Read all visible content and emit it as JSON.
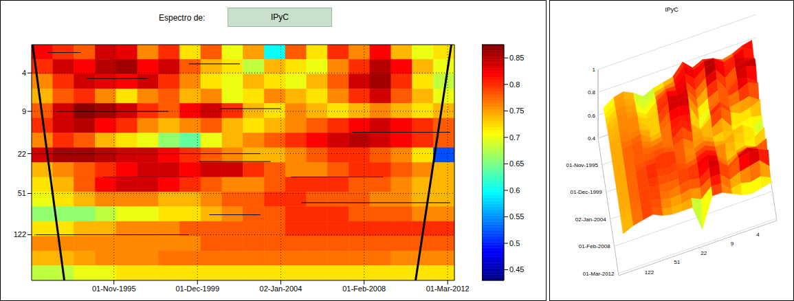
{
  "chart_data": [
    {
      "type": "heatmap",
      "title": "Espectro de:",
      "subtitle": "IPyC",
      "xlim": [
        1991.8,
        2012.5
      ],
      "xticks": [
        {
          "value": 1995.83,
          "label": "01-Nov-1995"
        },
        {
          "value": 1999.92,
          "label": "01-Dec-1999"
        },
        {
          "value": 2004.0,
          "label": "02-Jan-2004"
        },
        {
          "value": 2008.08,
          "label": "01-Feb-2008"
        },
        {
          "value": 2012.17,
          "label": "01-Mar-2012"
        }
      ],
      "ylim": [
        2.2,
        320
      ],
      "yticks": [
        4,
        9,
        22,
        51,
        122
      ],
      "log": "y",
      "grid": true,
      "color": "jet",
      "x_edges": [
        1991.8,
        1992.84,
        1993.87,
        1994.91,
        1995.94,
        1996.98,
        1998.01,
        1999.05,
        2000.08,
        2001.12,
        2002.15,
        2003.19,
        2004.22,
        2005.26,
        2006.29,
        2007.33,
        2008.36,
        2009.4,
        2010.43,
        2011.47,
        2012.5
      ],
      "y_edges": [
        2.2,
        3.0,
        4.1,
        5.6,
        7.6,
        10.4,
        14.2,
        19.4,
        26.5,
        36.2,
        49.4,
        67.4,
        92,
        126,
        172,
        234,
        320
      ],
      "cells": [
        [
          0.82,
          0.8,
          0.78,
          0.84,
          0.83,
          0.76,
          0.8,
          0.72,
          0.78,
          0.7,
          0.75,
          0.6,
          0.78,
          0.72,
          0.8,
          0.76,
          0.82,
          0.74,
          0.7,
          0.72
        ],
        [
          0.8,
          0.84,
          0.82,
          0.85,
          0.86,
          0.82,
          0.84,
          0.78,
          0.74,
          0.72,
          0.68,
          0.74,
          0.72,
          0.7,
          0.76,
          0.8,
          0.85,
          0.82,
          0.74,
          0.7
        ],
        [
          0.76,
          0.8,
          0.84,
          0.83,
          0.82,
          0.84,
          0.8,
          0.76,
          0.72,
          0.7,
          0.74,
          0.72,
          0.7,
          0.74,
          0.78,
          0.84,
          0.86,
          0.8,
          0.72,
          0.68
        ],
        [
          0.74,
          0.78,
          0.8,
          0.76,
          0.72,
          0.76,
          0.78,
          0.74,
          0.76,
          0.7,
          0.72,
          0.76,
          0.74,
          0.72,
          0.76,
          0.8,
          0.84,
          0.78,
          0.74,
          0.7
        ],
        [
          0.78,
          0.84,
          0.87,
          0.86,
          0.84,
          0.8,
          0.78,
          0.82,
          0.84,
          0.8,
          0.74,
          0.72,
          0.76,
          0.74,
          0.72,
          0.74,
          0.76,
          0.74,
          0.72,
          0.74
        ],
        [
          0.8,
          0.84,
          0.85,
          0.82,
          0.8,
          0.76,
          0.74,
          0.76,
          0.78,
          0.74,
          0.72,
          0.74,
          0.76,
          0.78,
          0.8,
          0.82,
          0.84,
          0.82,
          0.8,
          0.78
        ],
        [
          0.76,
          0.8,
          0.78,
          0.74,
          0.72,
          0.7,
          0.66,
          0.64,
          0.7,
          0.74,
          0.76,
          0.78,
          0.8,
          0.82,
          0.84,
          0.85,
          0.84,
          0.82,
          0.8,
          0.78
        ],
        [
          0.84,
          0.86,
          0.86,
          0.85,
          0.84,
          0.84,
          0.82,
          0.8,
          0.78,
          0.76,
          0.74,
          0.74,
          0.76,
          0.78,
          0.8,
          0.8,
          0.78,
          0.76,
          0.72,
          0.52
        ],
        [
          0.74,
          0.76,
          0.78,
          0.8,
          0.82,
          0.84,
          0.84,
          0.82,
          0.84,
          0.84,
          0.8,
          0.78,
          0.76,
          0.76,
          0.78,
          0.8,
          0.8,
          0.78,
          0.76,
          0.74
        ],
        [
          0.72,
          0.74,
          0.78,
          0.82,
          0.84,
          0.84,
          0.82,
          0.8,
          0.78,
          0.76,
          0.76,
          0.78,
          0.8,
          0.8,
          0.8,
          0.78,
          0.78,
          0.76,
          0.74,
          0.74
        ],
        [
          0.7,
          0.72,
          0.74,
          0.76,
          0.76,
          0.76,
          0.74,
          0.74,
          0.76,
          0.78,
          0.78,
          0.8,
          0.8,
          0.78,
          0.78,
          0.78,
          0.76,
          0.76,
          0.74,
          0.74
        ],
        [
          0.66,
          0.66,
          0.66,
          0.68,
          0.7,
          0.7,
          0.72,
          0.72,
          0.74,
          0.76,
          0.78,
          0.78,
          0.8,
          0.8,
          0.8,
          0.78,
          0.78,
          0.78,
          0.76,
          0.76
        ],
        [
          0.72,
          0.72,
          0.74,
          0.74,
          0.76,
          0.76,
          0.76,
          0.78,
          0.78,
          0.78,
          0.78,
          0.78,
          0.8,
          0.8,
          0.8,
          0.8,
          0.8,
          0.8,
          0.8,
          0.8
        ],
        [
          0.76,
          0.76,
          0.76,
          0.76,
          0.76,
          0.76,
          0.76,
          0.76,
          0.78,
          0.78,
          0.78,
          0.78,
          0.78,
          0.78,
          0.78,
          0.78,
          0.78,
          0.78,
          0.78,
          0.78
        ],
        [
          0.74,
          0.74,
          0.75,
          0.76,
          0.76,
          0.76,
          0.77,
          0.77,
          0.77,
          0.77,
          0.77,
          0.77,
          0.77,
          0.77,
          0.77,
          0.77,
          0.77,
          0.76,
          0.76,
          0.76
        ],
        [
          0.68,
          0.68,
          0.7,
          0.7,
          0.72,
          0.72,
          0.72,
          0.72,
          0.72,
          0.72,
          0.72,
          0.72,
          0.72,
          0.72,
          0.72,
          0.72,
          0.72,
          0.72,
          0.72,
          0.72
        ]
      ],
      "colorbar": {
        "range": [
          0.43,
          0.875
        ],
        "ticks": [
          0.45,
          0.5,
          0.55,
          0.6,
          0.65,
          0.7,
          0.75,
          0.8,
          0.85
        ]
      },
      "cone": [
        {
          "x": [
            1991.85,
            1993.4
          ],
          "y": [
            2.2,
            320
          ]
        },
        {
          "x": [
            2012.35,
            2010.6
          ],
          "y": [
            2.2,
            320
          ]
        }
      ],
      "ridges": [
        {
          "x": [
            1992.6,
            1994.2
          ],
          "y": 2.6
        },
        {
          "x": [
            1999.5,
            2002
          ],
          "y": 3.3
        },
        {
          "x": [
            1994.5,
            1997.5
          ],
          "y": 4.5
        },
        {
          "x": [
            1993,
            1998.5
          ],
          "y": 9
        },
        {
          "x": [
            2001,
            2004
          ],
          "y": 8.5
        },
        {
          "x": [
            2007.5,
            2012.3
          ],
          "y": 14
        },
        {
          "x": [
            1991.9,
            2003
          ],
          "y": 22
        },
        {
          "x": [
            2000,
            2003.5
          ],
          "y": 26
        },
        {
          "x": [
            1995.3,
            1999.7
          ],
          "y": 36
        },
        {
          "x": [
            2004.5,
            2009
          ],
          "y": 36
        },
        {
          "x": [
            2005,
            2012.3
          ],
          "y": 62
        },
        {
          "x": [
            2000.5,
            2003
          ],
          "y": 80
        },
        {
          "x": [
            1992,
            1999.5
          ],
          "y": 122
        }
      ]
    },
    {
      "type": "surface",
      "title": "IPyC",
      "xlim": [
        1991.8,
        2012.5
      ],
      "xticks": [
        {
          "value": 1995.83,
          "label": "01-Nov-1995"
        },
        {
          "value": 1999.92,
          "label": "01-Dec-1999"
        },
        {
          "value": 2004.0,
          "label": "02-Jan-2004"
        },
        {
          "value": 2008.08,
          "label": "01-Feb-2008"
        },
        {
          "value": 2012.17,
          "label": "01-Mar-2012"
        }
      ],
      "ylim": [
        2.2,
        320
      ],
      "yticks": [
        4,
        9,
        22,
        51,
        122
      ],
      "log": "y",
      "zlim": [
        0.4,
        1
      ],
      "zticks": [
        0.4,
        0.6,
        0.8,
        1
      ]
    }
  ]
}
